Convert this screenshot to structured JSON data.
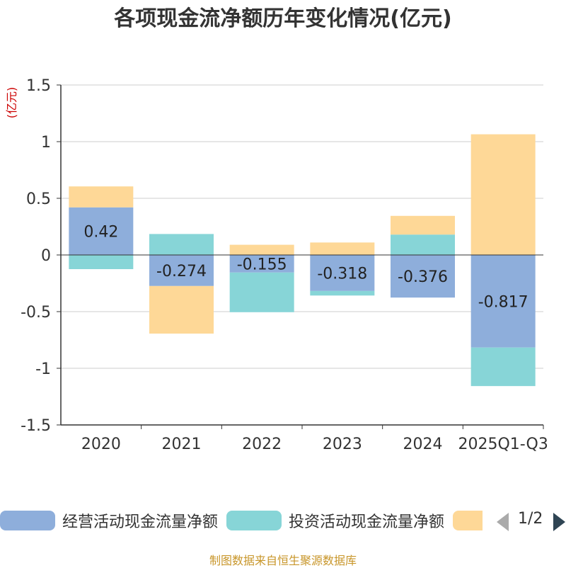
{
  "chart_data": {
    "type": "bar",
    "stacked": true,
    "title": "各项现金流净额历年变化情况(亿元)",
    "ylabel": "(亿元)",
    "xlabel": "",
    "categories": [
      "2020",
      "2021",
      "2022",
      "2023",
      "2024",
      "2025Q1-Q3"
    ],
    "ylim": [
      -1.5,
      1.5
    ],
    "yticks": [
      1.5,
      1,
      0.5,
      0,
      -0.5,
      -1,
      -1.5
    ],
    "ytick_labels": [
      "1.5",
      "1",
      "0.5",
      "0",
      "-0.5",
      "-1",
      "-1.5"
    ],
    "grid": true,
    "series": [
      {
        "name": "经营活动现金流量净额",
        "color": "#8eaedb",
        "values": [
          0.42,
          -0.274,
          -0.155,
          -0.318,
          -0.376,
          -0.817
        ],
        "labels": [
          "0.42",
          "-0.274",
          "-0.155",
          "-0.318",
          "-0.376",
          "-0.817"
        ]
      },
      {
        "name": "投资活动现金流量净额",
        "color": "#87d5d7",
        "values": [
          -0.125,
          0.185,
          -0.35,
          -0.04,
          0.18,
          -0.34
        ]
      },
      {
        "name": "",
        "color": "#fed897",
        "values": [
          0.185,
          -0.42,
          0.09,
          0.11,
          0.165,
          1.065
        ]
      }
    ],
    "legend_position": "bottom"
  },
  "legend": {
    "items": [
      {
        "label": "经营活动现金流量净额",
        "color": "#8eaedb"
      },
      {
        "label": "投资活动现金流量净额",
        "color": "#87d5d7"
      },
      {
        "label": "",
        "color": "#fed897"
      }
    ],
    "page_text": "1/2"
  },
  "source": "制图数据来自恒生聚源数据库",
  "colors": {
    "title": "#333333",
    "axis_unit": "#cc0000",
    "source": "#c8962a",
    "grid": "#cccccc",
    "axis": "#333333"
  }
}
